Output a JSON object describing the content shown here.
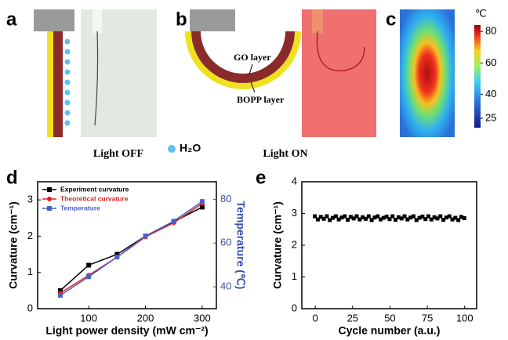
{
  "panel_labels": [
    "a",
    "b",
    "c",
    "d",
    "e"
  ],
  "diagram": {
    "light_off": "Light OFF",
    "light_on": "Light ON",
    "water": "H₂O",
    "go_layer": "GO layer",
    "bopp_layer": "BOPP layer"
  },
  "thermal": {
    "unit": "℃",
    "colorbar_lim": [
      19,
      84
    ],
    "colorbar_ticks": [
      25,
      40,
      60,
      80
    ]
  },
  "chart_data": [
    {
      "type": "line",
      "xlabel": "Light power density (mW cm⁻²)",
      "ylabel": "Curvature (cm⁻¹)",
      "y2label": "Temperature (℃)",
      "y2color": "#3a4fb0",
      "x": [
        50,
        100,
        150,
        200,
        250,
        300
      ],
      "xlim": [
        10,
        325
      ],
      "xticks": [
        100,
        200,
        300
      ],
      "ylim": [
        0,
        3.5
      ],
      "yticks": [
        0,
        1,
        2,
        3
      ],
      "y2lim": [
        30,
        88
      ],
      "y2ticks": [
        40,
        60,
        80
      ],
      "legend": "upper left",
      "series": [
        {
          "name": "Experiment curvature",
          "color": "#000000",
          "marker": "square",
          "values": [
            0.5,
            1.2,
            1.5,
            2.0,
            2.4,
            2.8
          ]
        },
        {
          "name": "Theoretical curvature",
          "color": "#e02020",
          "marker": "circle",
          "values": [
            0.43,
            0.92,
            1.42,
            1.98,
            2.37,
            2.9
          ]
        },
        {
          "name": "Temperature",
          "color": "#4a5fc8",
          "marker": "square",
          "axis": "y2",
          "values": [
            36.1,
            44.6,
            53.6,
            63.2,
            70,
            79
          ]
        }
      ]
    },
    {
      "type": "scatter",
      "xlabel": "Cycle number (a.u.)",
      "ylabel": "Curvature (cm⁻¹)",
      "color": "#000000",
      "xlim": [
        -9,
        108
      ],
      "xticks": [
        0,
        25,
        50,
        75,
        100
      ],
      "ylim": [
        0,
        4
      ],
      "yticks": [
        0,
        1,
        2,
        3,
        4
      ],
      "x": [
        0,
        2,
        4,
        6,
        8,
        10,
        12,
        14,
        16,
        18,
        20,
        22,
        24,
        26,
        28,
        30,
        32,
        34,
        36,
        38,
        40,
        42,
        44,
        46,
        48,
        50,
        52,
        54,
        56,
        58,
        60,
        62,
        64,
        66,
        68,
        70,
        72,
        74,
        76,
        78,
        80,
        82,
        84,
        86,
        88,
        90,
        92,
        94,
        96,
        98,
        100
      ],
      "values": [
        2.9,
        2.8,
        2.88,
        2.82,
        2.9,
        2.78,
        2.85,
        2.9,
        2.8,
        2.86,
        2.9,
        2.79,
        2.88,
        2.83,
        2.9,
        2.8,
        2.87,
        2.82,
        2.9,
        2.78,
        2.86,
        2.9,
        2.8,
        2.85,
        2.89,
        2.81,
        2.9,
        2.79,
        2.87,
        2.83,
        2.9,
        2.8,
        2.86,
        2.9,
        2.78,
        2.85,
        2.89,
        2.81,
        2.9,
        2.8,
        2.87,
        2.83,
        2.9,
        2.79,
        2.86,
        2.9,
        2.8,
        2.85,
        2.78,
        2.88,
        2.84
      ]
    }
  ]
}
